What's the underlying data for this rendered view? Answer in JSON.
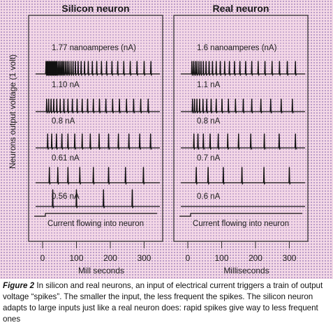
{
  "figure": {
    "y_axis_label": "Neurons output voltage (1 volt)",
    "input_caption": "Current flowing into neuron"
  },
  "chart_data": [
    {
      "type": "line",
      "title": "Silicon neuron",
      "xlabel": "Mill seconds",
      "xticks": [
        0,
        100,
        200,
        300
      ],
      "xlim": [
        0,
        330
      ],
      "series": [
        {
          "name": "1.77 nanoamperes (nA)",
          "spike_times_ms": [
            10,
            13,
            16,
            19,
            22,
            25,
            28,
            31,
            34,
            37,
            40,
            43,
            47,
            51,
            55,
            59,
            63,
            68,
            73,
            78,
            84,
            90,
            97,
            105,
            114,
            124,
            135,
            147,
            160,
            174,
            189,
            205,
            222,
            240,
            259,
            279,
            300,
            320
          ]
        },
        {
          "name": "1.10 nA",
          "spike_times_ms": [
            12,
            18,
            25,
            33,
            42,
            52,
            63,
            75,
            88,
            102,
            117,
            133,
            150,
            168,
            187,
            207,
            227,
            248,
            269,
            290,
            312
          ]
        },
        {
          "name": "0.8 nA",
          "spike_times_ms": [
            15,
            27,
            41,
            57,
            75,
            95,
            117,
            141,
            167,
            195,
            224,
            255,
            287,
            319
          ]
        },
        {
          "name": "0.61 nA",
          "spike_times_ms": [
            20,
            45,
            75,
            110,
            150,
            195,
            245,
            298
          ]
        },
        {
          "name": "0.56 nA",
          "spike_times_ms": [
            30,
            100,
            180,
            265
          ]
        }
      ]
    },
    {
      "type": "line",
      "title": "Real neuron",
      "xlabel": "Milliseconds",
      "xticks": [
        0,
        100,
        200,
        300
      ],
      "xlim": [
        0,
        330
      ],
      "series": [
        {
          "name": "1.6 nanoamperes (nA)",
          "spike_times_ms": [
            12,
            17,
            22,
            27,
            33,
            39,
            46,
            54,
            63,
            73,
            84,
            96,
            109,
            123,
            138,
            154,
            171,
            189,
            208,
            228,
            249,
            271,
            294,
            318
          ]
        },
        {
          "name": "1.1 nA",
          "spike_times_ms": [
            14,
            20,
            27,
            35,
            45,
            56,
            69,
            84,
            101,
            120,
            141,
            164,
            189,
            216,
            245,
            276,
            309
          ]
        },
        {
          "name": "0.8 nA",
          "spike_times_ms": [
            18,
            30,
            46,
            66,
            90,
            118,
            150,
            186,
            226,
            270,
            318
          ]
        },
        {
          "name": "0.7 nA",
          "spike_times_ms": [
            25,
            60,
            105,
            160,
            225,
            300
          ]
        },
        {
          "name": "0.6 nA",
          "spike_times_ms": []
        }
      ]
    }
  ],
  "caption": {
    "figure_label": "Figure 2",
    "text": "In silicon and real neurons, an input of electrical current triggers a train of output voltage “spikes”. The smaller the input, the less frequent the spikes. The silicon neuron adapts to large inputs just like a real neuron does: rapid spikes give way to less frequent ones"
  }
}
